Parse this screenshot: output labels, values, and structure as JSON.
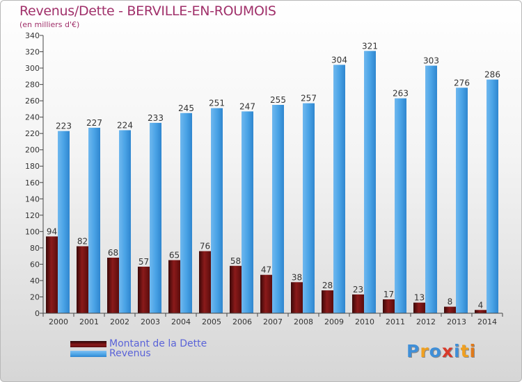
{
  "header": {
    "title": "Revenus/Dette - BERVILLE-EN-ROUMOIS",
    "subtitle": "(en milliers d'€)"
  },
  "chart_data": {
    "type": "bar",
    "title": "Revenus/Dette - BERVILLE-EN-ROUMOIS",
    "subtitle": "(en milliers d'€)",
    "xlabel": "",
    "ylabel": "",
    "ylim": [
      0,
      340
    ],
    "yticks": [
      0,
      20,
      40,
      60,
      80,
      100,
      120,
      140,
      160,
      180,
      200,
      220,
      240,
      260,
      280,
      300,
      320,
      340
    ],
    "grid": false,
    "legend": "bottom-left",
    "categories": [
      "2000",
      "2001",
      "2002",
      "2003",
      "2004",
      "2005",
      "2006",
      "2007",
      "2008",
      "2009",
      "2010",
      "2011",
      "2012",
      "2013",
      "2014"
    ],
    "series": [
      {
        "name": "Montant de la Dette",
        "color": "#8b1a1a",
        "values": [
          94,
          82,
          68,
          57,
          65,
          76,
          58,
          47,
          38,
          28,
          23,
          17,
          13,
          8,
          4
        ]
      },
      {
        "name": "Revenus",
        "color": "#4aa3e6",
        "values": [
          223,
          227,
          224,
          233,
          245,
          251,
          247,
          255,
          257,
          304,
          321,
          263,
          303,
          276,
          286
        ]
      }
    ]
  },
  "legend": {
    "items": [
      {
        "label": "Montant de la Dette",
        "color": "#8b1a1a"
      },
      {
        "label": "Revenus",
        "color": "#4aa3e6"
      }
    ]
  },
  "logo": {
    "letters": [
      "P",
      "r",
      "o",
      "x",
      "i",
      "t",
      "i"
    ],
    "colors": [
      "#3f8fd8",
      "#f0a020",
      "#3f8fd8",
      "#d83a2a",
      "#3f8fd8",
      "#f0a020",
      "#e07a1a"
    ]
  }
}
